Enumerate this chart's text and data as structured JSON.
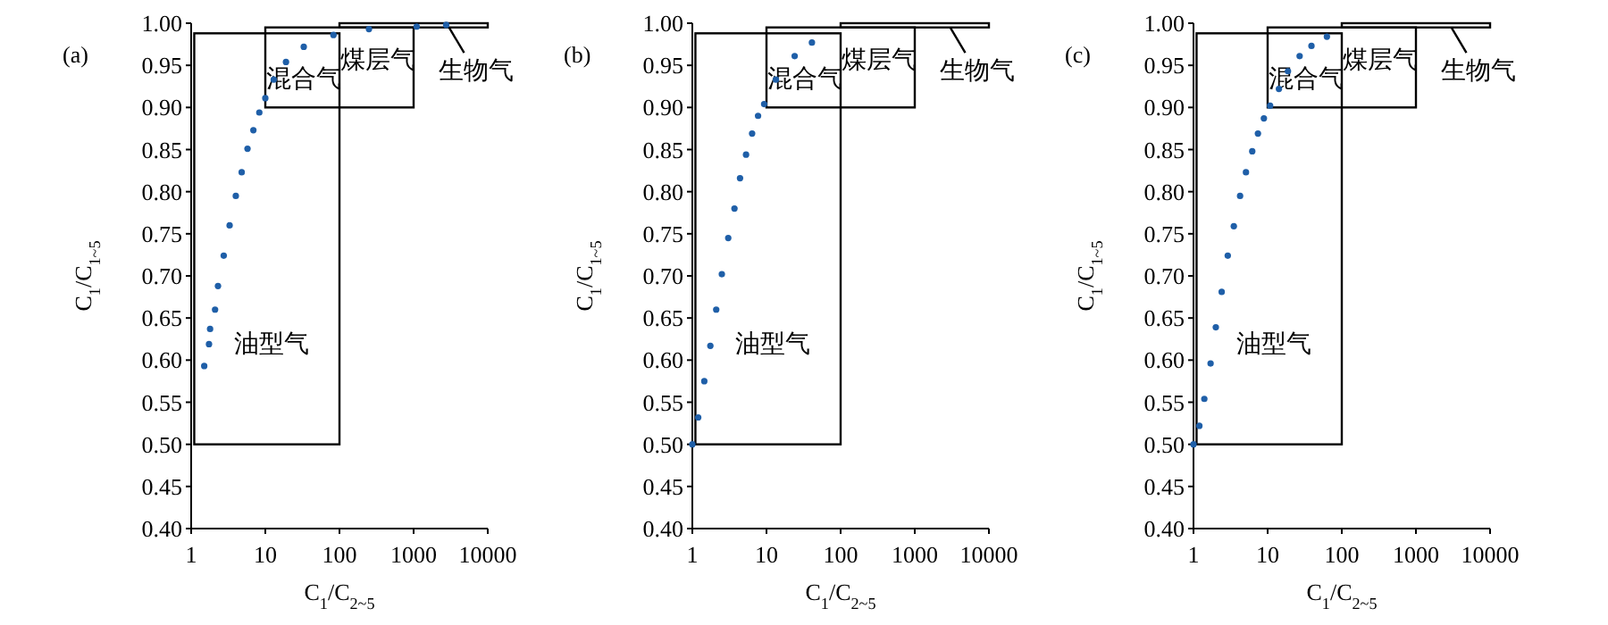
{
  "chart_data": [
    {
      "type": "scatter",
      "xlabel": "C$_{1}$/C$_{2~5}$",
      "ylabel": "C$_{1}$/C$_{1~5}$",
      "log": "x",
      "xlim": [
        1,
        10000
      ],
      "xticks": [
        1,
        10,
        100,
        1000,
        10000
      ],
      "ylim": [
        0.4,
        1.0
      ],
      "yticks": [
        {
          "value": 0.4,
          "label": "0.40"
        },
        {
          "value": 0.45,
          "label": "0.45"
        },
        {
          "value": 0.5,
          "label": "0.50"
        },
        {
          "value": 0.55,
          "label": "0.55"
        },
        {
          "value": 0.6,
          "label": "0.60"
        },
        {
          "value": 0.65,
          "label": "0.65"
        },
        {
          "value": 0.7,
          "label": "0.70"
        },
        {
          "value": 0.75,
          "label": "0.75"
        },
        {
          "value": 0.8,
          "label": "0.80"
        },
        {
          "value": 0.85,
          "label": "0.85"
        },
        {
          "value": 0.9,
          "label": "0.90"
        },
        {
          "value": 0.95,
          "label": "0.95"
        },
        {
          "value": 1.0,
          "label": "1.00"
        }
      ],
      "series": [
        {
          "type": "scatter",
          "marker": "circle",
          "color": "#1f5fa8",
          "x": [
            1.5,
            1.74,
            1.8,
            2.1,
            2.3,
            2.75,
            3.3,
            4.0,
            4.8,
            5.75,
            6.9,
            8.3,
            10,
            13,
            19,
            33,
            83,
            250,
            1100,
            2750
          ],
          "values": [
            0.593,
            0.619,
            0.637,
            0.66,
            0.688,
            0.724,
            0.76,
            0.795,
            0.823,
            0.851,
            0.873,
            0.894,
            0.911,
            0.933,
            0.954,
            0.972,
            0.986,
            0.993,
            0.996,
            0.998
          ]
        }
      ],
      "annotations": [
        "(a)",
        "油型气",
        "混合气",
        "煤层气",
        "生物气"
      ]
    },
    {
      "type": "scatter",
      "xlabel": "C$_{1}$/C$_{2~5}$",
      "ylabel": "C$_{1}$/C$_{1~5}$",
      "log": "x",
      "xlim": [
        1,
        10000
      ],
      "xticks": [
        1,
        10,
        100,
        1000,
        10000
      ],
      "ylim": [
        0.4,
        1.0
      ],
      "yticks": [
        {
          "value": 0.4,
          "label": "0.40"
        },
        {
          "value": 0.45,
          "label": "0.45"
        },
        {
          "value": 0.5,
          "label": "0.50"
        },
        {
          "value": 0.55,
          "label": "0.55"
        },
        {
          "value": 0.6,
          "label": "0.60"
        },
        {
          "value": 0.65,
          "label": "0.65"
        },
        {
          "value": 0.7,
          "label": "0.70"
        },
        {
          "value": 0.75,
          "label": "0.75"
        },
        {
          "value": 0.8,
          "label": "0.80"
        },
        {
          "value": 0.85,
          "label": "0.85"
        },
        {
          "value": 0.9,
          "label": "0.90"
        },
        {
          "value": 0.95,
          "label": "0.95"
        },
        {
          "value": 1.0,
          "label": "1.00"
        }
      ],
      "series": [
        {
          "type": "scatter",
          "marker": "circle",
          "color": "#1f5fa8",
          "x": [
            1,
            1.2,
            1.45,
            1.75,
            2.1,
            2.5,
            3.05,
            3.7,
            4.4,
            5.3,
            6.4,
            7.7,
            9.3,
            13.4,
            24,
            41
          ],
          "values": [
            0.5,
            0.532,
            0.575,
            0.617,
            0.66,
            0.702,
            0.745,
            0.78,
            0.816,
            0.844,
            0.869,
            0.89,
            0.904,
            0.933,
            0.961,
            0.977
          ]
        }
      ],
      "annotations": [
        "(b)",
        "油型气",
        "混合气",
        "煤层气",
        "生物气"
      ]
    },
    {
      "type": "scatter",
      "xlabel": "C$_{1}$/C$_{2~5}$",
      "ylabel": "C$_{1}$/C$_{1~5}$",
      "log": "x",
      "xlim": [
        1,
        10000
      ],
      "xticks": [
        1,
        10,
        100,
        1000,
        10000
      ],
      "ylim": [
        0.4,
        1.0
      ],
      "yticks": [
        {
          "value": 0.4,
          "label": "0.40"
        },
        {
          "value": 0.45,
          "label": "0.45"
        },
        {
          "value": 0.5,
          "label": "0.50"
        },
        {
          "value": 0.55,
          "label": "0.55"
        },
        {
          "value": 0.6,
          "label": "0.60"
        },
        {
          "value": 0.65,
          "label": "0.65"
        },
        {
          "value": 0.7,
          "label": "0.70"
        },
        {
          "value": 0.75,
          "label": "0.75"
        },
        {
          "value": 0.8,
          "label": "0.80"
        },
        {
          "value": 0.85,
          "label": "0.85"
        },
        {
          "value": 0.9,
          "label": "0.90"
        },
        {
          "value": 0.95,
          "label": "0.95"
        },
        {
          "value": 1.0,
          "label": "1.00"
        }
      ],
      "series": [
        {
          "type": "scatter",
          "marker": "circle",
          "color": "#1f5fa8",
          "x": [
            1,
            1.2,
            1.4,
            1.7,
            2.0,
            2.4,
            2.9,
            3.5,
            4.25,
            5.1,
            6.2,
            7.4,
            8.9,
            10.8,
            14.2,
            18.8,
            27,
            39,
            63
          ],
          "values": [
            0.5,
            0.522,
            0.554,
            0.596,
            0.639,
            0.681,
            0.724,
            0.759,
            0.795,
            0.823,
            0.848,
            0.869,
            0.887,
            0.902,
            0.922,
            0.943,
            0.961,
            0.973,
            0.984
          ]
        }
      ],
      "annotations": [
        "(c)",
        "油型气",
        "混合气",
        "煤层气",
        "生物气"
      ]
    }
  ]
}
